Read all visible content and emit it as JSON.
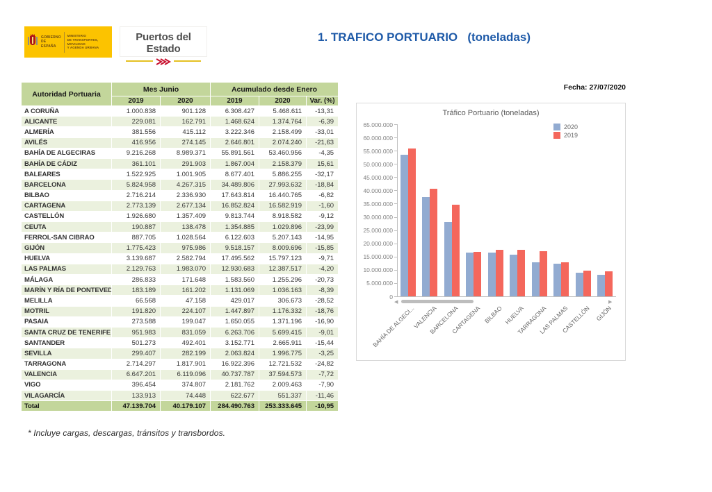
{
  "header": {
    "gov_title": "GOBIERNO\nDE ESPAÑA",
    "ministry": "MINISTERIO\nDE TRANSPORTES, MOVILIDAD\nY AGENDA URBANA",
    "org_name": "Puertos del Estado",
    "title": "1. TRAFICO PORTUARIO   (toneladas)"
  },
  "date_label": "Fecha: 27/07/2020",
  "icons": {
    "coat_of_arms": "spanish-coat-of-arms",
    "wave": "red-wave-chevrons",
    "scroll_left": "left-arrow",
    "scroll_right": "right-arrow"
  },
  "table": {
    "col_port": "Autoridad Portuaria",
    "group_month": "Mes Junio",
    "group_accum": "Acumulado desde Enero",
    "subheaders": [
      "2019",
      "2020",
      "2019",
      "2020",
      "Var. (%)"
    ],
    "rows": [
      [
        "A CORUÑA",
        "1.000.838",
        "901.128",
        "6.308.427",
        "5.468.611",
        "-13,31"
      ],
      [
        "ALICANTE",
        "229.081",
        "162.791",
        "1.468.624",
        "1.374.764",
        "-6,39"
      ],
      [
        "ALMERÍA",
        "381.556",
        "415.112",
        "3.222.346",
        "2.158.499",
        "-33,01"
      ],
      [
        "AVILÉS",
        "416.956",
        "274.145",
        "2.646.801",
        "2.074.240",
        "-21,63"
      ],
      [
        "BAHÍA DE ALGECIRAS",
        "9.216.268",
        "8.989.371",
        "55.891.561",
        "53.460.956",
        "-4,35"
      ],
      [
        "BAHÍA DE CÁDIZ",
        "361.101",
        "291.903",
        "1.867.004",
        "2.158.379",
        "15,61"
      ],
      [
        "BALEARES",
        "1.522.925",
        "1.001.905",
        "8.677.401",
        "5.886.255",
        "-32,17"
      ],
      [
        "BARCELONA",
        "5.824.958",
        "4.267.315",
        "34.489.806",
        "27.993.632",
        "-18,84"
      ],
      [
        "BILBAO",
        "2.716.214",
        "2.336.930",
        "17.643.814",
        "16.440.765",
        "-6,82"
      ],
      [
        "CARTAGENA",
        "2.773.139",
        "2.677.134",
        "16.852.824",
        "16.582.919",
        "-1,60"
      ],
      [
        "CASTELLÓN",
        "1.926.680",
        "1.357.409",
        "9.813.744",
        "8.918.582",
        "-9,12"
      ],
      [
        "CEUTA",
        "190.887",
        "138.478",
        "1.354.885",
        "1.029.896",
        "-23,99"
      ],
      [
        "FERROL-SAN CIBRAO",
        "887.705",
        "1.028.564",
        "6.122.603",
        "5.207.143",
        "-14,95"
      ],
      [
        "GIJÓN",
        "1.775.423",
        "975.986",
        "9.518.157",
        "8.009.696",
        "-15,85"
      ],
      [
        "HUELVA",
        "3.139.687",
        "2.582.794",
        "17.495.562",
        "15.797.123",
        "-9,71"
      ],
      [
        "LAS PALMAS",
        "2.129.763",
        "1.983.070",
        "12.930.683",
        "12.387.517",
        "-4,20"
      ],
      [
        "MÁLAGA",
        "286.833",
        "171.648",
        "1.583.560",
        "1.255.296",
        "-20,73"
      ],
      [
        "MARÍN Y RÍA DE PONTEVEDRA",
        "183.189",
        "161.202",
        "1.131.069",
        "1.036.163",
        "-8,39"
      ],
      [
        "MELILLA",
        "66.568",
        "47.158",
        "429.017",
        "306.673",
        "-28,52"
      ],
      [
        "MOTRIL",
        "191.820",
        "224.107",
        "1.447.897",
        "1.176.332",
        "-18,76"
      ],
      [
        "PASAIA",
        "273.588",
        "199.047",
        "1.650.055",
        "1.371.196",
        "-16,90"
      ],
      [
        "SANTA CRUZ DE TENERIFE",
        "951.983",
        "831.059",
        "6.263.706",
        "5.699.415",
        "-9,01"
      ],
      [
        "SANTANDER",
        "501.273",
        "492.401",
        "3.152.771",
        "2.665.911",
        "-15,44"
      ],
      [
        "SEVILLA",
        "299.407",
        "282.199",
        "2.063.824",
        "1.996.775",
        "-3,25"
      ],
      [
        "TARRAGONA",
        "2.714.297",
        "1.817.901",
        "16.922.396",
        "12.721.532",
        "-24,82"
      ],
      [
        "VALENCIA",
        "6.647.201",
        "6.119.096",
        "40.737.787",
        "37.594.573",
        "-7,72"
      ],
      [
        "VIGO",
        "396.454",
        "374.807",
        "2.181.762",
        "2.009.463",
        "-7,90"
      ],
      [
        "VILAGARCÍA",
        "133.913",
        "74.448",
        "622.677",
        "551.337",
        "-11,46"
      ]
    ],
    "total": [
      "Total",
      "47.139.704",
      "40.179.107",
      "284.490.763",
      "253.333.645",
      "-10,95"
    ]
  },
  "footnote": "* Incluye cargas, descargas, tránsitos y transbordos.",
  "chart_data": {
    "type": "bar",
    "title": "Tráfico Portuario (toneladas)",
    "categories": [
      "BAHÍA DE ALGECI...",
      "VALENCIA",
      "BARCELONA",
      "CARTAGENA",
      "BILBAO",
      "HUELVA",
      "TARRAGONA",
      "LAS PALMAS",
      "CASTELLÓN",
      "GIJÓN"
    ],
    "series": [
      {
        "name": "2020",
        "color": "#92abd1",
        "values": [
          53460956,
          37594573,
          27993632,
          16582919,
          16440765,
          15797123,
          12721532,
          12387517,
          8918582,
          8009696
        ]
      },
      {
        "name": "2019",
        "color": "#f4675c",
        "values": [
          55891561,
          40737787,
          34489806,
          16852824,
          17643814,
          17495562,
          16922396,
          12930683,
          9813744,
          9518157
        ]
      }
    ],
    "xlabel": "",
    "ylabel": "",
    "ylim": [
      0,
      65000000
    ],
    "ytick_step": 5000000,
    "grid": false,
    "legend_position": "top-right",
    "has_scrollbar": true
  },
  "colors": {
    "title_blue": "#1e5aa8",
    "table_header_green": "#c3d69b",
    "table_alt_row": "#ebf1de",
    "gov_logo_yellow": "#fcc300",
    "bar_2020": "#92abd1",
    "bar_2019": "#f4675c"
  }
}
